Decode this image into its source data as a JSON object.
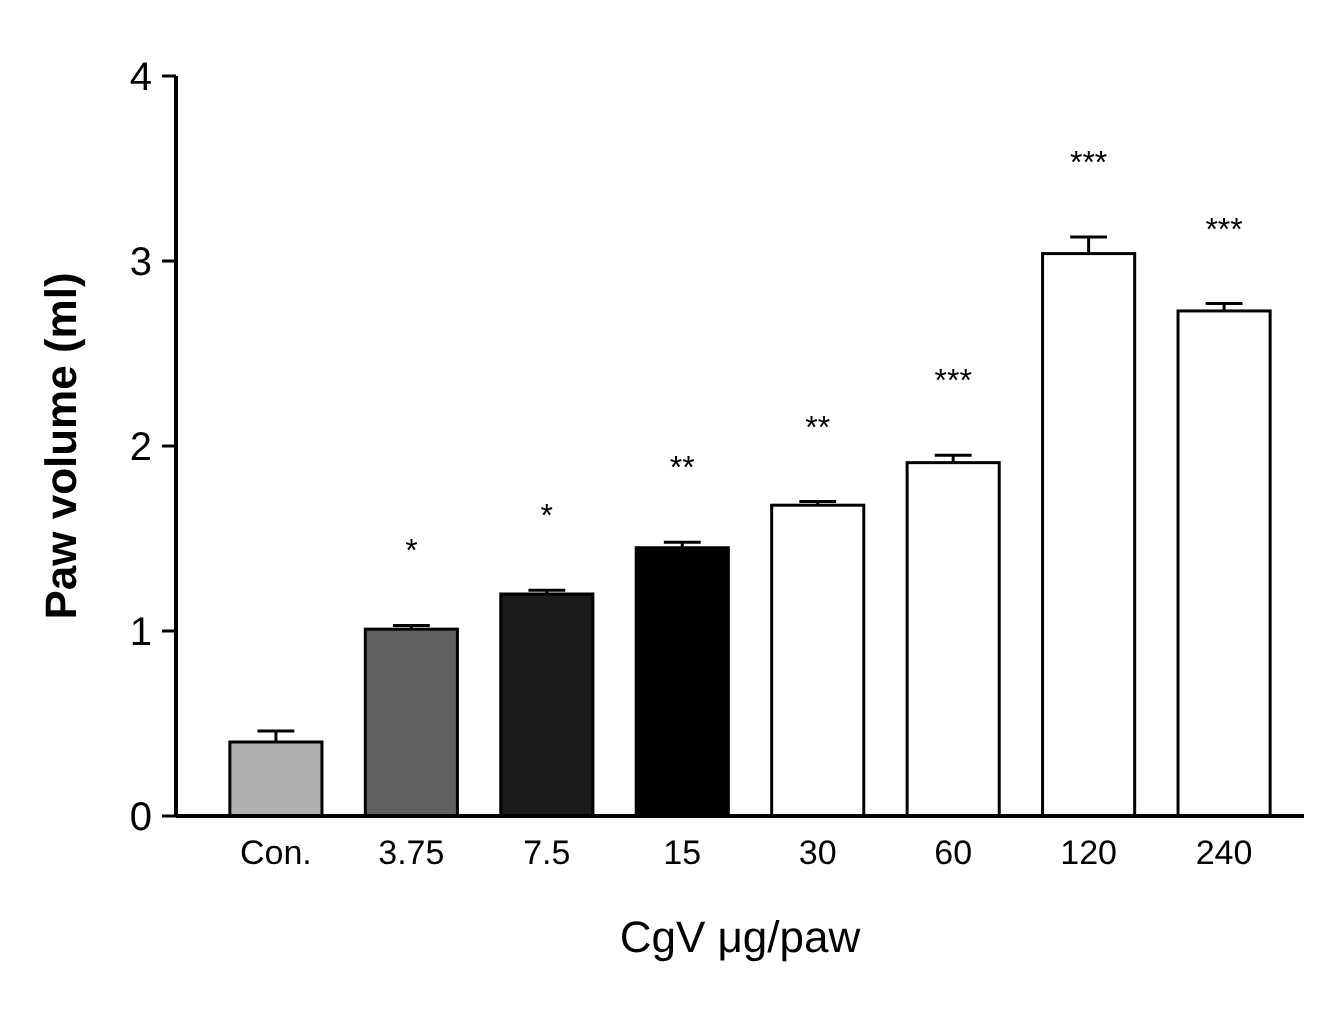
{
  "chart_data": {
    "type": "bar",
    "xlabel": "CgV μg/paw",
    "ylabel": "Paw volume (ml)",
    "categories": [
      "Con.",
      "3.75",
      "7.5",
      "15",
      "30",
      "60",
      "120",
      "240"
    ],
    "values": [
      0.4,
      1.01,
      1.2,
      1.45,
      1.68,
      1.91,
      3.04,
      2.73
    ],
    "errors": [
      0.06,
      0.02,
      0.02,
      0.03,
      0.02,
      0.04,
      0.09,
      0.04
    ],
    "colors": [
      "#b0b0b0",
      "#606060",
      "#1a1a1a",
      "#000000",
      "#ffffff",
      "#ffffff",
      "#ffffff",
      "#ffffff"
    ],
    "ylim": [
      0,
      4
    ],
    "yticks": [
      0,
      1,
      2,
      3,
      4
    ],
    "grid": false,
    "annotations": [
      {
        "text": "*",
        "x": "3.75",
        "y": 1.01
      },
      {
        "text": "*",
        "x": "7.5",
        "y": 1.2
      },
      {
        "text": "**",
        "x": "15",
        "y": 1.45
      },
      {
        "text": "**",
        "x": "30",
        "y": 1.68
      },
      {
        "text": "***",
        "x": "60",
        "y": 1.91
      },
      {
        "text": "***",
        "x": "120",
        "y": 3.04
      },
      {
        "text": "***",
        "x": "240",
        "y": 2.73
      }
    ]
  }
}
